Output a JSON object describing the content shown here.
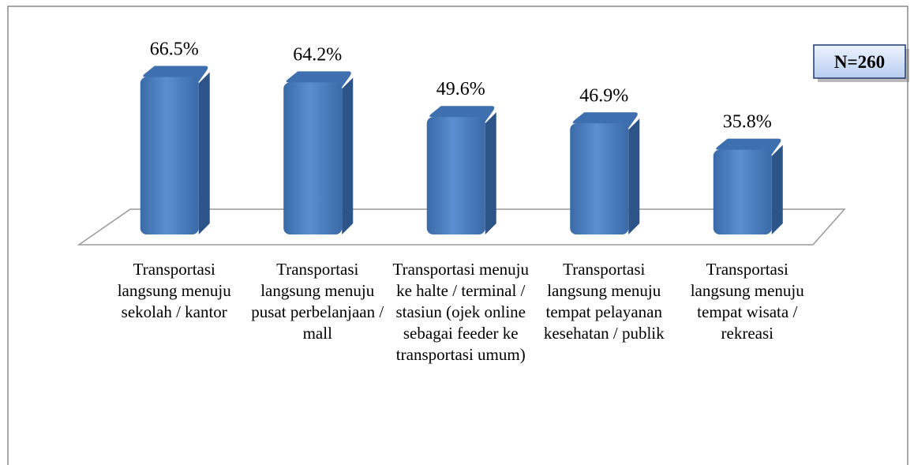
{
  "chart_data": {
    "type": "bar3d",
    "categories": [
      "Transportasi langsung menuju sekolah / kantor",
      "Transportasi langsung menuju pusat perbelanjaan / mall",
      "Transportasi menuju ke halte / terminal / stasiun (ojek online sebagai feeder ke transportasi umum)",
      "Transportasi langsung menuju tempat pelayanan kesehatan / publik",
      "Transportasi langsung menuju tempat wisata / rekreasi"
    ],
    "values": [
      66.5,
      64.2,
      49.6,
      46.9,
      35.8
    ],
    "value_labels": [
      "66.5%",
      "64.2%",
      "49.6%",
      "46.9%",
      "35.8%"
    ],
    "color": "#4f81bd",
    "annotation": "N=260"
  }
}
